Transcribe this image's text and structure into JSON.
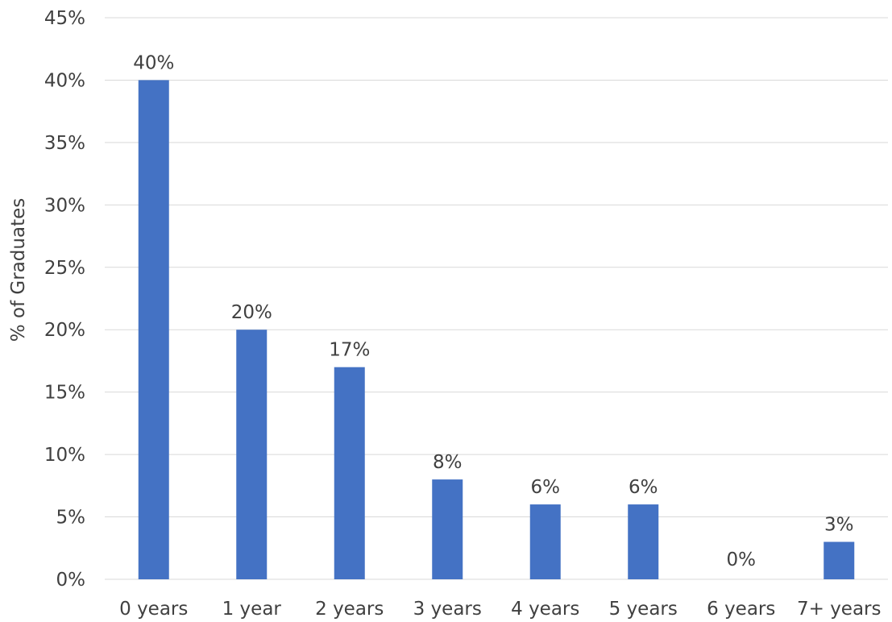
{
  "chart_data": {
    "type": "bar",
    "categories": [
      "0 years",
      "1 year",
      "2 years",
      "3 years",
      "4 years",
      "5 years",
      "6 years",
      "7+ years"
    ],
    "values": [
      40,
      20,
      17,
      8,
      6,
      6,
      0,
      3
    ],
    "data_labels": [
      "40%",
      "20%",
      "17%",
      "8%",
      "6%",
      "6%",
      "0%",
      "3%"
    ],
    "title": "",
    "xlabel": "",
    "ylabel": "% of Graduates",
    "ylim": [
      0,
      45
    ],
    "ytick_values": [
      0,
      5,
      10,
      15,
      20,
      25,
      30,
      35,
      40,
      45
    ],
    "ytick_labels": [
      "0%",
      "5%",
      "10%",
      "15%",
      "20%",
      "25%",
      "30%",
      "35%",
      "40%",
      "45%"
    ],
    "grid": true,
    "legend": "none",
    "bar_color": "#4472c4",
    "grid_color": "#d9d9d9",
    "text_color": "#404040"
  }
}
